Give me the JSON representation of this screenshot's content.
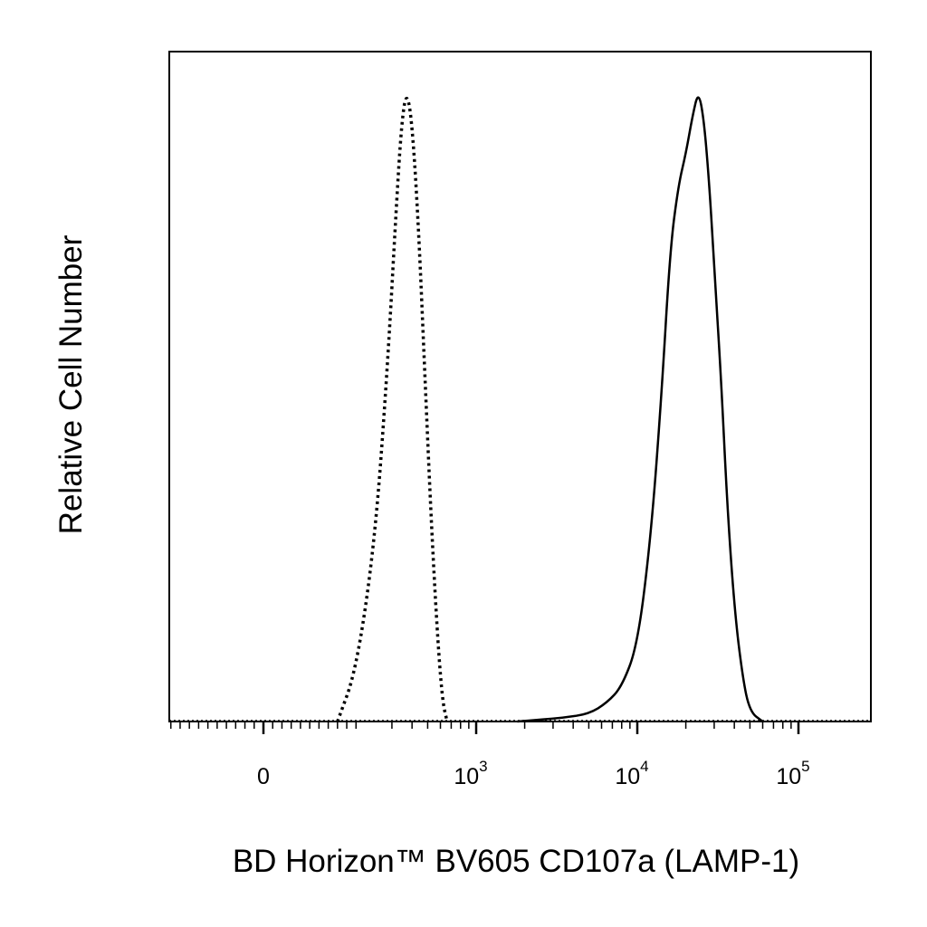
{
  "chart_data": {
    "type": "histogram",
    "title": "",
    "xlabel": "BD Horizon™ BV605 CD107a (LAMP-1)",
    "ylabel": "Relative Cell Number",
    "x_scale": "biexponential",
    "xlim": [
      -300,
      100000
    ],
    "ylim": [
      0,
      1
    ],
    "grid": false,
    "legend": "none",
    "x_ticks": [
      {
        "value": 0,
        "base": "0",
        "exp": ""
      },
      {
        "value": 1000,
        "base": "10",
        "exp": "3"
      },
      {
        "value": 10000,
        "base": "10",
        "exp": "4"
      },
      {
        "value": 100000,
        "base": "10",
        "exp": "5"
      }
    ],
    "series": [
      {
        "style": "dotted",
        "color": "#000000",
        "x": [
          160,
          200,
          240,
          280,
          320,
          345,
          370,
          400,
          440,
          480,
          530,
          580,
          620,
          660
        ],
        "y": [
          0.0,
          0.08,
          0.28,
          0.55,
          0.82,
          0.95,
          1.0,
          0.95,
          0.78,
          0.55,
          0.3,
          0.12,
          0.03,
          0.0
        ]
      },
      {
        "style": "solid",
        "color": "#000000",
        "x": [
          1800,
          2500,
          3500,
          5000,
          6500,
          8000,
          10000,
          12000,
          14000,
          16000,
          18000,
          20000,
          22000,
          24000,
          26000,
          28000,
          30000,
          33000,
          36000,
          40000,
          45000,
          50000,
          60000
        ],
        "y": [
          0.0,
          0.003,
          0.006,
          0.012,
          0.03,
          0.055,
          0.12,
          0.28,
          0.5,
          0.75,
          0.85,
          0.9,
          0.96,
          1.0,
          0.95,
          0.85,
          0.72,
          0.55,
          0.35,
          0.18,
          0.07,
          0.015,
          0.0
        ]
      }
    ]
  }
}
